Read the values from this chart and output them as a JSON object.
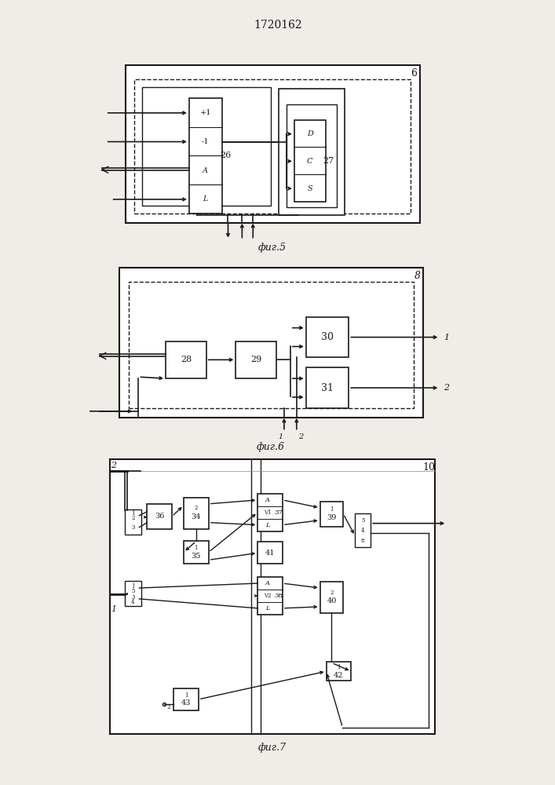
{
  "title": "1720162",
  "fig5_label": "фиг.5",
  "fig6_label": "фиг.6",
  "fig7_label": "фиг.7",
  "bg_color": "#f0ede8",
  "line_color": "#1a1a1a",
  "box_color": "#ffffff"
}
